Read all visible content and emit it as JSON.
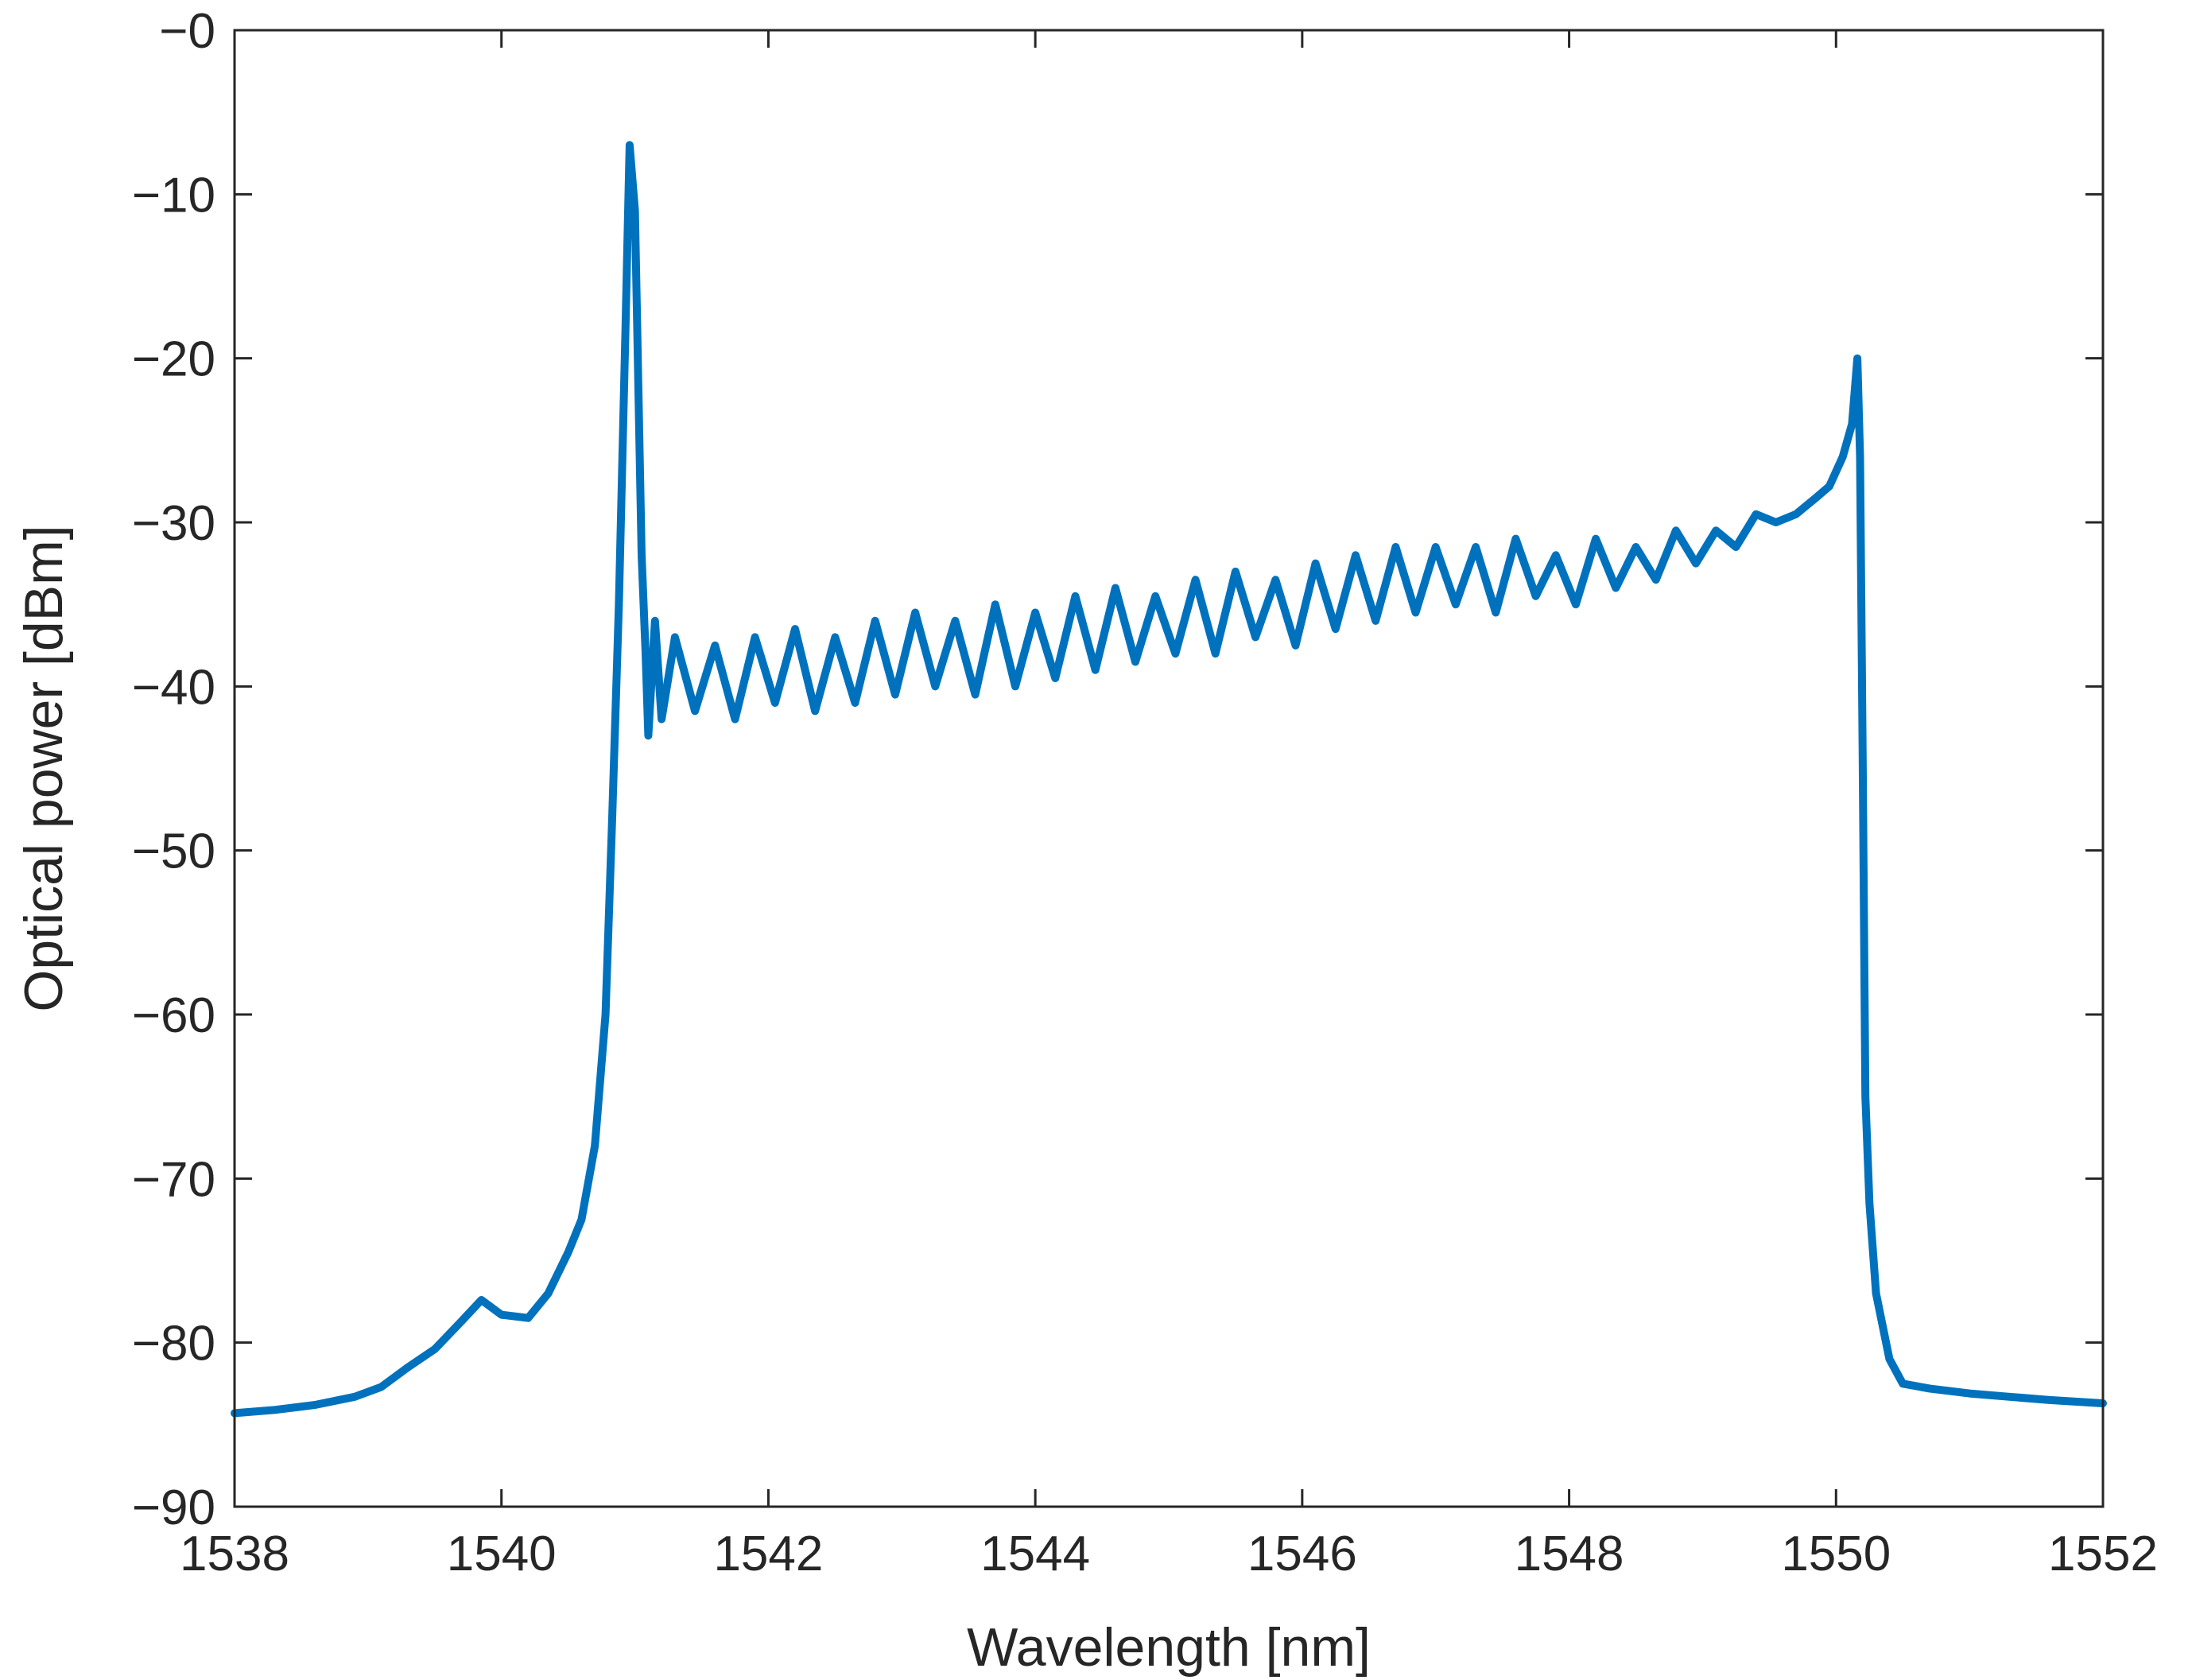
{
  "chart_data": {
    "type": "line",
    "xlabel": "Wavelength [nm]",
    "ylabel": "Optical power [dBm]",
    "xlim": [
      1538,
      1552
    ],
    "ylim": [
      -90,
      0
    ],
    "xticks": [
      1538,
      1540,
      1542,
      1544,
      1546,
      1548,
      1550,
      1552
    ],
    "xtick_labels": [
      "1538",
      "1540",
      "1542",
      "1544",
      "1546",
      "1548",
      "1550",
      "1552"
    ],
    "yticks": [
      -90,
      -80,
      -70,
      -60,
      -50,
      -40,
      -30,
      -20,
      -10,
      0
    ],
    "ytick_labels": [
      "−90",
      "−80",
      "−70",
      "−60",
      "−50",
      "−40",
      "−30",
      "−20",
      "−10",
      "−0"
    ],
    "grid": false,
    "colors": {
      "series": "#0072BD",
      "axes": "#262626"
    },
    "series": [
      {
        "x": [
          1538.0,
          1538.3,
          1538.6,
          1538.9,
          1539.1,
          1539.3,
          1539.5,
          1539.7,
          1539.85,
          1540.0,
          1540.2,
          1540.35,
          1540.5,
          1540.6,
          1540.7,
          1540.78,
          1540.83,
          1540.88,
          1540.93,
          1540.96,
          1541.0,
          1541.05,
          1541.08,
          1541.1,
          1541.15,
          1541.2,
          1541.3,
          1541.45,
          1541.6,
          1541.75,
          1541.9,
          1542.05,
          1542.2,
          1542.35,
          1542.5,
          1542.65,
          1542.8,
          1542.95,
          1543.1,
          1543.25,
          1543.4,
          1543.55,
          1543.7,
          1543.85,
          1544.0,
          1544.15,
          1544.3,
          1544.45,
          1544.6,
          1544.75,
          1544.9,
          1545.05,
          1545.2,
          1545.35,
          1545.5,
          1545.65,
          1545.8,
          1545.95,
          1546.1,
          1546.25,
          1546.4,
          1546.55,
          1546.7,
          1546.85,
          1547.0,
          1547.15,
          1547.3,
          1547.45,
          1547.6,
          1547.75,
          1547.9,
          1548.05,
          1548.2,
          1548.35,
          1548.5,
          1548.65,
          1548.8,
          1548.95,
          1549.1,
          1549.25,
          1549.4,
          1549.55,
          1549.7,
          1549.85,
          1549.95,
          1550.05,
          1550.12,
          1550.16,
          1550.18,
          1550.2,
          1550.22,
          1550.25,
          1550.3,
          1550.4,
          1550.5,
          1550.7,
          1551.0,
          1551.3,
          1551.6,
          1552.0
        ],
        "y": [
          -84.3,
          -84.1,
          -83.8,
          -83.3,
          -82.7,
          -81.5,
          -80.4,
          -78.7,
          -77.4,
          -78.3,
          -78.5,
          -77.0,
          -74.5,
          -72.5,
          -68.0,
          -60.0,
          -48.0,
          -35.0,
          -18.0,
          -7.0,
          -11.0,
          -32.0,
          -38.0,
          -43.0,
          -36.0,
          -42.0,
          -37.0,
          -41.5,
          -37.5,
          -42.0,
          -37.0,
          -41.0,
          -36.5,
          -41.5,
          -37.0,
          -41.0,
          -36.0,
          -40.5,
          -35.5,
          -40.0,
          -36.0,
          -40.5,
          -35.0,
          -40.0,
          -35.5,
          -39.5,
          -34.5,
          -39.0,
          -34.0,
          -38.5,
          -34.5,
          -38.0,
          -33.5,
          -38.0,
          -33.0,
          -37.0,
          -33.5,
          -37.5,
          -32.5,
          -36.5,
          -32.0,
          -36.0,
          -31.5,
          -35.5,
          -31.5,
          -35.0,
          -31.5,
          -35.5,
          -31.0,
          -34.5,
          -32.0,
          -35.0,
          -31.0,
          -34.0,
          -31.5,
          -33.5,
          -30.5,
          -32.5,
          -30.5,
          -31.5,
          -29.5,
          -30.0,
          -29.5,
          -28.5,
          -27.8,
          -26.0,
          -24.0,
          -20.0,
          -26.0,
          -45.0,
          -65.0,
          -71.5,
          -77.0,
          -81.0,
          -82.5,
          -82.8,
          -83.1,
          -83.3,
          -83.5,
          -83.7
        ]
      }
    ]
  }
}
